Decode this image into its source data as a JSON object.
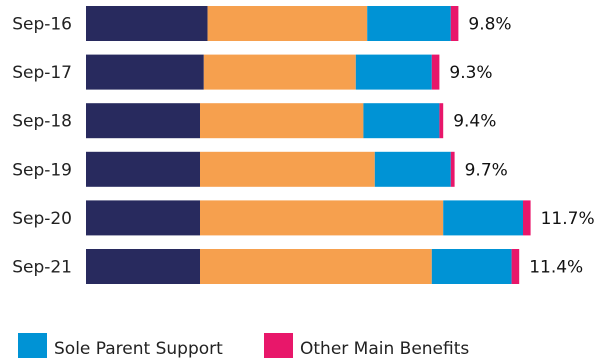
{
  "chart_data": {
    "type": "bar",
    "orientation": "horizontal",
    "stacked": true,
    "categories": [
      "Sep-16",
      "Sep-17",
      "Sep-18",
      "Sep-19",
      "Sep-20",
      "Sep-21"
    ],
    "totals": [
      "9.8%",
      "9.3%",
      "9.4%",
      "9.7%",
      "11.7%",
      "11.4%"
    ],
    "series": [
      {
        "color": "#282a5e",
        "values": [
          3.2,
          3.1,
          3.0,
          3.0,
          3.0,
          3.0
        ]
      },
      {
        "color": "#f6a04e",
        "values": [
          4.2,
          4.0,
          4.3,
          4.6,
          6.4,
          6.1
        ]
      },
      {
        "color": "#0093d5",
        "values": [
          2.2,
          2.0,
          2.0,
          2.0,
          2.1,
          2.1
        ]
      },
      {
        "name": "Other Main Benefits",
        "color": "#e8176a",
        "values": [
          0.2,
          0.2,
          0.1,
          0.1,
          0.2,
          0.2
        ]
      }
    ],
    "legend": [
      {
        "label": "Sole Parent Support",
        "color": "#0093d5"
      },
      {
        "label": "Other Main Benefits",
        "color": "#e8176a"
      }
    ],
    "legend_position": "bottom",
    "grid": false
  }
}
